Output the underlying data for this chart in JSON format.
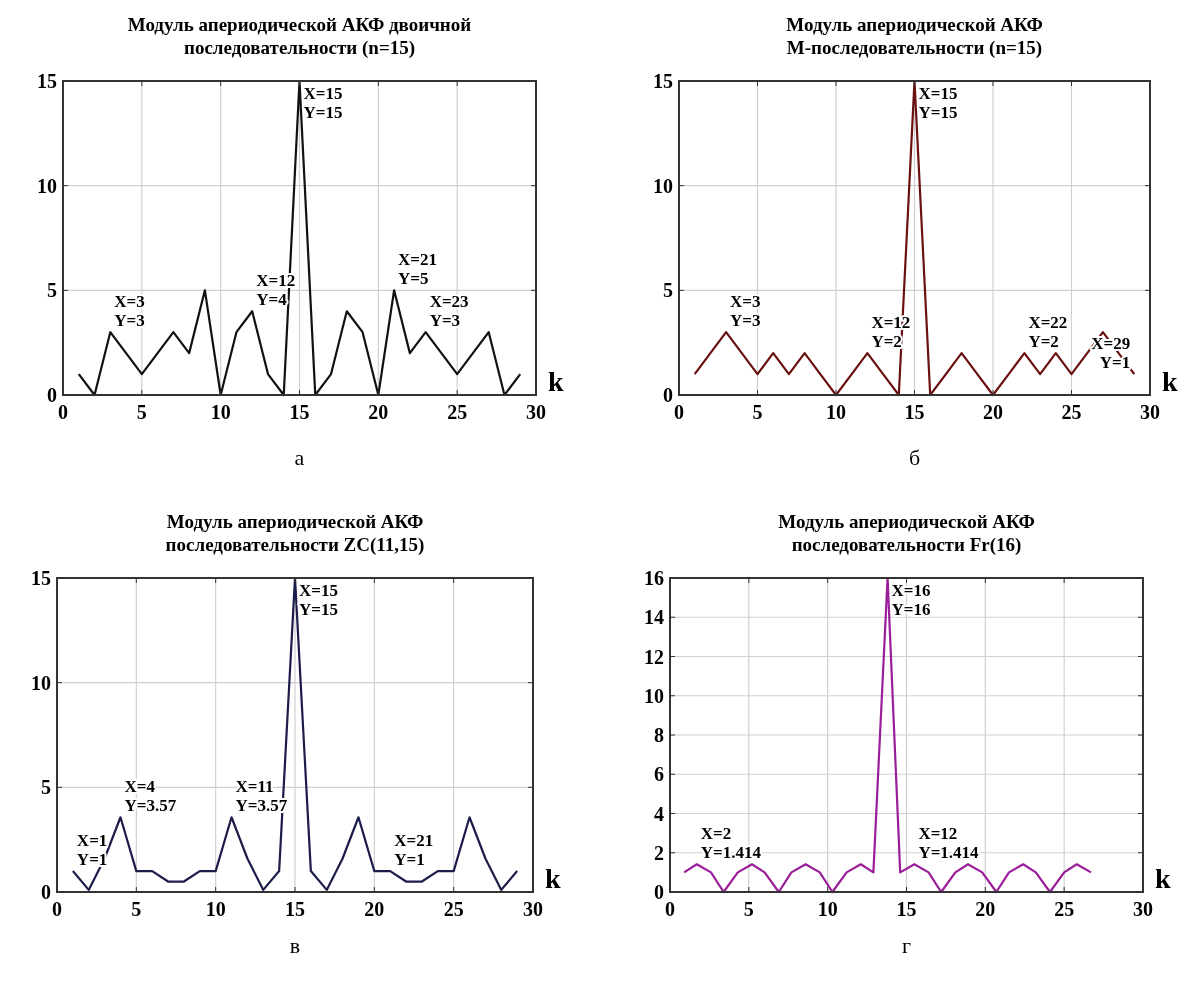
{
  "chart_data": [
    {
      "type": "line",
      "title": "Модуль апериодической АКФ двоичной\nпоследовательности (n=15)",
      "xlabel": "k",
      "x": [
        1,
        2,
        3,
        4,
        5,
        6,
        7,
        8,
        9,
        10,
        11,
        12,
        13,
        14,
        15,
        16,
        17,
        18,
        19,
        20,
        21,
        22,
        23,
        24,
        25,
        26,
        27,
        28,
        29
      ],
      "series": [
        {
          "color": "#111111",
          "values": [
            1,
            0,
            3,
            2,
            1,
            2,
            3,
            2,
            5,
            0,
            3,
            4,
            1,
            0,
            15,
            0,
            1,
            4,
            3,
            0,
            5,
            2,
            3,
            2,
            1,
            2,
            3,
            0,
            1
          ]
        }
      ],
      "xlim": [
        0,
        30
      ],
      "xticks": [
        0,
        5,
        10,
        15,
        20,
        25,
        30
      ],
      "ylim": [
        0,
        15
      ],
      "yticks": [
        0,
        5,
        10,
        15
      ],
      "grid": true,
      "marker": "none",
      "line_style": "solid",
      "annotations": [
        {
          "text": "X=3\nY=3",
          "x": 3,
          "y": 3
        },
        {
          "text": "X=12\nY=4",
          "x": 12,
          "y": 4
        },
        {
          "text": "X=15\nY=15",
          "x": 15,
          "y": 15
        },
        {
          "text": "X=21\nY=5",
          "x": 21,
          "y": 5
        },
        {
          "text": "X=23\nY=3",
          "x": 23,
          "y": 3
        },
        "а"
      ]
    },
    {
      "type": "line",
      "title": "Модуль апериодической АКФ\nM-последовательности (n=15)",
      "xlabel": "k",
      "x": [
        1,
        2,
        3,
        4,
        5,
        6,
        7,
        8,
        9,
        10,
        11,
        12,
        13,
        14,
        15,
        16,
        17,
        18,
        19,
        20,
        21,
        22,
        23,
        24,
        25,
        26,
        27,
        28,
        29
      ],
      "series": [
        {
          "color": "#6b1010",
          "values": [
            1,
            2,
            3,
            2,
            1,
            2,
            1,
            2,
            1,
            0,
            1,
            2,
            1,
            0,
            15,
            0,
            1,
            2,
            1,
            0,
            1,
            2,
            1,
            2,
            1,
            2,
            3,
            2,
            1
          ]
        }
      ],
      "xlim": [
        0,
        30
      ],
      "xticks": [
        0,
        5,
        10,
        15,
        20,
        25,
        30
      ],
      "ylim": [
        0,
        15
      ],
      "yticks": [
        0,
        5,
        10,
        15
      ],
      "grid": true,
      "marker": "none",
      "line_style": "solid",
      "annotations": [
        {
          "text": "X=3\nY=3",
          "x": 3,
          "y": 3
        },
        {
          "text": "X=12\nY=2",
          "x": 12,
          "y": 2
        },
        {
          "text": "X=15\nY=15",
          "x": 15,
          "y": 15
        },
        {
          "text": "X=22\nY=2",
          "x": 22,
          "y": 2
        },
        {
          "text": "X=29\nY=1",
          "x": 29,
          "y": 1
        },
        "б"
      ]
    },
    {
      "type": "line",
      "title": "Модуль апериодической АКФ\nпоследовательности ZC(11,15)",
      "xlabel": "k",
      "x": [
        1,
        2,
        3,
        4,
        5,
        6,
        7,
        8,
        9,
        10,
        11,
        12,
        13,
        14,
        15,
        16,
        17,
        18,
        19,
        20,
        21,
        22,
        23,
        24,
        25,
        26,
        27,
        28,
        29
      ],
      "series": [
        {
          "color": "#1c1c4a",
          "values": [
            1,
            0.1,
            1.6,
            3.57,
            1,
            1,
            0.5,
            0.5,
            1,
            1,
            3.57,
            1.6,
            0.1,
            1,
            15,
            1,
            0.1,
            1.6,
            3.57,
            1,
            1,
            0.5,
            0.5,
            1,
            1,
            3.57,
            1.6,
            0.1,
            1
          ]
        }
      ],
      "xlim": [
        0,
        30
      ],
      "xticks": [
        0,
        5,
        10,
        15,
        20,
        25,
        30
      ],
      "ylim": [
        0,
        15
      ],
      "yticks": [
        0,
        5,
        10,
        15
      ],
      "grid": true,
      "marker": "none",
      "line_style": "solid",
      "annotations": [
        {
          "text": "X=1\nY=1",
          "x": 1,
          "y": 1
        },
        {
          "text": "X=4\nY=3.57",
          "x": 4,
          "y": 3.57
        },
        {
          "text": "X=11\nY=3.57",
          "x": 11,
          "y": 3.57
        },
        {
          "text": "X=15\nY=15",
          "x": 15,
          "y": 15
        },
        {
          "text": "X=21\nY=1",
          "x": 21,
          "y": 1
        },
        "в"
      ]
    },
    {
      "type": "line",
      "title": "Модуль апериодической АКФ\nпоследовательности Fr(16)",
      "xlabel": "k",
      "x": [
        0.9,
        1.7,
        2.6,
        3.4,
        4.3,
        5.2,
        6.0,
        6.9,
        7.7,
        8.6,
        9.5,
        10.3,
        11.2,
        12.1,
        12.9,
        13.8,
        14.6,
        15.5,
        16.4,
        17.2,
        18.1,
        18.9,
        19.8,
        20.7,
        21.5,
        22.4,
        23.2,
        24.1,
        25.0,
        25.8,
        26.7
      ],
      "series": [
        {
          "color": "#9a1d9a",
          "values": [
            1,
            1.414,
            1,
            0,
            1,
            1.414,
            1,
            0,
            1,
            1.414,
            1,
            0,
            1,
            1.414,
            1,
            16,
            1,
            1.414,
            1,
            0,
            1,
            1.414,
            1,
            0,
            1,
            1.414,
            1,
            0,
            1,
            1.414,
            1
          ]
        }
      ],
      "xlim": [
        0,
        30
      ],
      "xticks": [
        0,
        5,
        10,
        15,
        20,
        25,
        30
      ],
      "ylim": [
        0,
        16
      ],
      "yticks": [
        0,
        2,
        4,
        6,
        8,
        10,
        12,
        14,
        16
      ],
      "grid": true,
      "marker": "none",
      "line_style": "solid",
      "annotations": [
        {
          "text": "X=2\nY=1.414",
          "x": 1.7,
          "y": 1.414
        },
        {
          "text": "X=16\nY=16",
          "x": 13.8,
          "y": 16
        },
        {
          "text": "X=12\nY=1.414",
          "x": 15.5,
          "y": 1.414
        },
        "г"
      ]
    }
  ]
}
